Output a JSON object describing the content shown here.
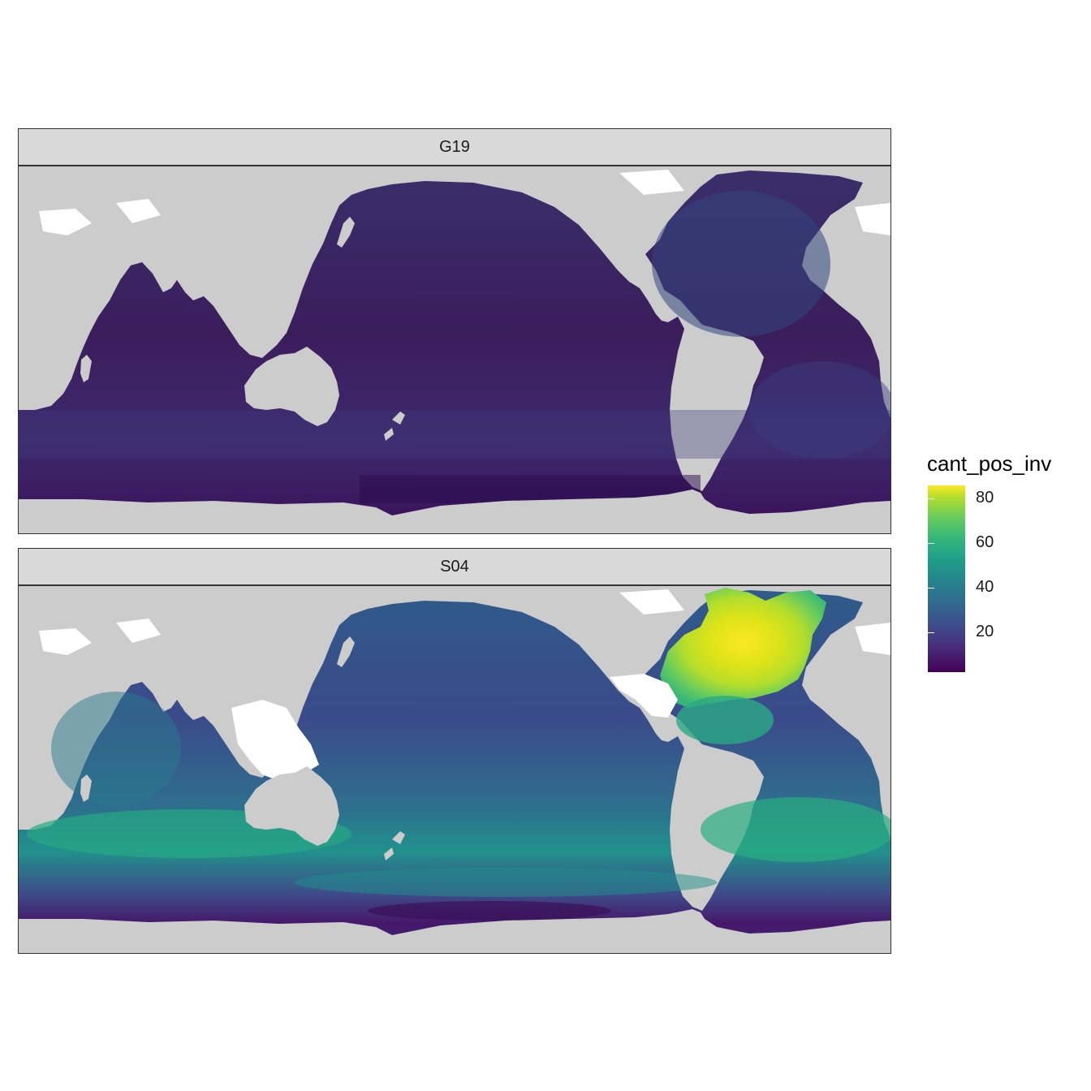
{
  "panels": [
    {
      "label": "G19",
      "model": "G19"
    },
    {
      "label": "S04",
      "model": "S04"
    }
  ],
  "legend": {
    "title": "cant_pos_inv",
    "ticks": [
      {
        "value": 20,
        "label": "20"
      },
      {
        "value": 40,
        "label": "40"
      },
      {
        "value": 60,
        "label": "60"
      },
      {
        "value": 80,
        "label": "80"
      }
    ],
    "range": [
      2,
      86
    ],
    "palette": "viridis"
  },
  "colors": {
    "land": "#cccccc",
    "no_data": "#ffffff",
    "strip_bg": "#d9d9d9",
    "border": "#333333"
  },
  "map": {
    "lon_range": [
      20,
      380
    ],
    "lat_range": [
      -78,
      67
    ]
  }
}
